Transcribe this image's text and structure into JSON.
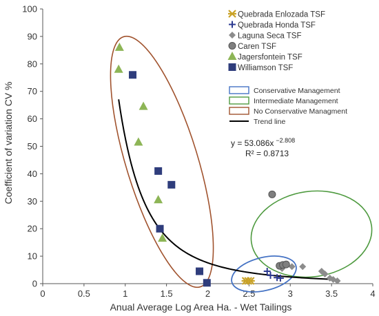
{
  "chart_data": {
    "type": "scatter",
    "xlabel": "Anual Average  Log Area Ha. - Wet Tailings",
    "ylabel": "Coefficient of variation CV %",
    "xlim": [
      0,
      4
    ],
    "ylim": [
      0,
      100
    ],
    "x_ticks": [
      "0",
      "0.5",
      "1",
      "1.5",
      "2",
      "2.5",
      "3",
      "3.5",
      "4"
    ],
    "y_ticks": [
      "0",
      "10",
      "20",
      "30",
      "40",
      "50",
      "60",
      "70",
      "80",
      "90",
      "100"
    ],
    "series": [
      {
        "name": "Quebrada Enlozada TSF",
        "marker": "star",
        "color": "#c9a227",
        "points": [
          [
            2.46,
            1
          ],
          [
            2.49,
            1
          ],
          [
            2.52,
            1
          ]
        ]
      },
      {
        "name": "Quebrada Honda TSF",
        "marker": "plus",
        "color": "#2b3990",
        "points": [
          [
            2.72,
            4.5
          ],
          [
            2.76,
            3
          ],
          [
            2.84,
            2.2
          ],
          [
            2.88,
            2
          ]
        ]
      },
      {
        "name": "Laguna Seca TSF",
        "marker": "diamond",
        "color": "#8c8c8c",
        "points": [
          [
            2.9,
            5.5
          ],
          [
            3.02,
            6.2
          ],
          [
            3.15,
            6.2
          ],
          [
            3.38,
            4.5
          ],
          [
            3.42,
            3.5
          ],
          [
            3.48,
            2
          ],
          [
            3.52,
            1.5
          ],
          [
            3.57,
            1
          ]
        ]
      },
      {
        "name": "Caren TSF",
        "marker": "circle",
        "color": "#7f7f7f",
        "points": [
          [
            2.78,
            32.5
          ],
          [
            2.87,
            6.5
          ],
          [
            2.91,
            6.8
          ],
          [
            2.95,
            7
          ]
        ]
      },
      {
        "name": "Jagersfontein TSF",
        "marker": "triangle",
        "color": "#8db556",
        "points": [
          [
            0.93,
            86
          ],
          [
            0.92,
            78
          ],
          [
            1.22,
            64.5
          ],
          [
            1.16,
            51.5
          ],
          [
            1.4,
            30.5
          ],
          [
            1.45,
            16.5
          ]
        ]
      },
      {
        "name": "Williamson TSF",
        "marker": "square",
        "color": "#2f3d7c",
        "points": [
          [
            1.09,
            76
          ],
          [
            1.4,
            41
          ],
          [
            1.56,
            36
          ],
          [
            1.42,
            20
          ],
          [
            1.9,
            4.5
          ],
          [
            1.99,
            0.3
          ]
        ]
      }
    ],
    "trend_line": {
      "name": "Trend line",
      "a": 53.086,
      "b": -2.808,
      "x_range": [
        0.92,
        3.5
      ]
    },
    "equation_text": "y = 53.086x",
    "equation_exponent": "−2.808",
    "r2_text": "R² = 0.8713",
    "management_legend": [
      {
        "label": "Conservative Management",
        "color": "#4472c4"
      },
      {
        "label": "Intermediate Management",
        "color": "#4e9a3f"
      },
      {
        "label": "No Conservative Managment",
        "color": "#a0522d"
      },
      {
        "label": "Trend line",
        "color": "#000000"
      }
    ],
    "ellipse_colors": {
      "conservative": "#4472c4",
      "intermediate": "#4e9a3f",
      "no_conservative": "#a0522d"
    },
    "grid": false,
    "legend_position": "top-right"
  }
}
